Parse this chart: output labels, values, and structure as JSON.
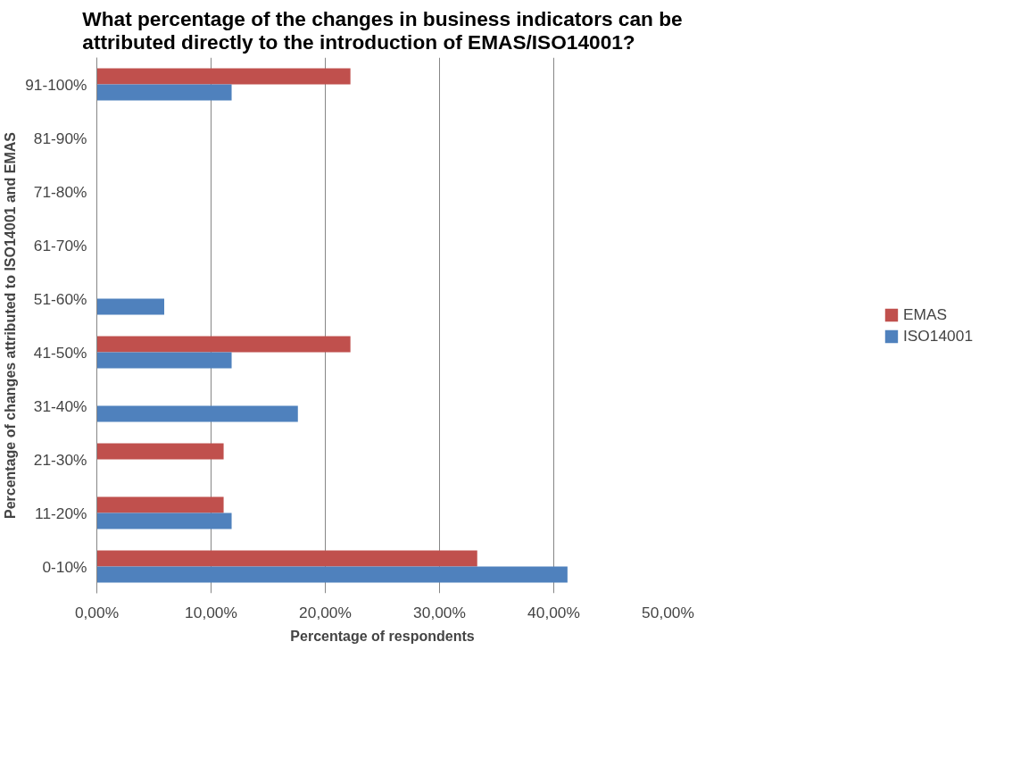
{
  "chart_data": {
    "type": "bar",
    "orientation": "horizontal",
    "title": "What percentage of the changes in business indicators can be attributed directly to the introduction of EMAS/ISO14001?",
    "xlabel": "Percentage of respondents",
    "ylabel": "Percentage of changes attributed to ISO14001 and EMAS",
    "categories": [
      "91-100%",
      "81-90%",
      "71-80%",
      "61-70%",
      "51-60%",
      "41-50%",
      "31-40%",
      "21-30%",
      "11-20%",
      "0-10%"
    ],
    "series": [
      {
        "name": "EMAS",
        "color": "#c0504d",
        "values": [
          22.2,
          0,
          0,
          0,
          0,
          22.2,
          0,
          11.1,
          11.1,
          33.3
        ]
      },
      {
        "name": "ISO14001",
        "color": "#4f81bd",
        "values": [
          11.8,
          0,
          0,
          0,
          5.9,
          11.8,
          17.6,
          0,
          11.8,
          41.2
        ]
      }
    ],
    "xlim": [
      0,
      50
    ],
    "xticks": [
      {
        "value": 0,
        "label": "0,00%"
      },
      {
        "value": 10,
        "label": "10,00%"
      },
      {
        "value": 20,
        "label": "20,00%"
      },
      {
        "value": 30,
        "label": "30,00%"
      },
      {
        "value": 40,
        "label": "40,00%"
      },
      {
        "value": 50,
        "label": "50,00%"
      }
    ],
    "grid": "x",
    "legend": "right"
  }
}
